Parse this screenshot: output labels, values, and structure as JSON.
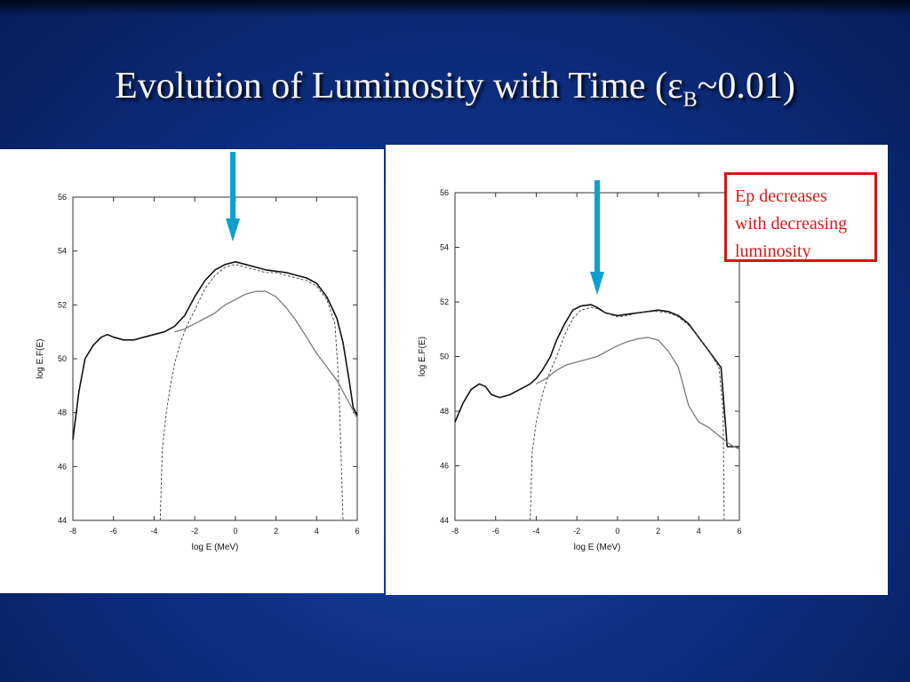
{
  "slide": {
    "title_main": "Evolution of Luminosity with Time (ε",
    "title_sub": "B",
    "title_tail": "~0.01)"
  },
  "callout": {
    "lines": [
      "Ep decreases",
      "with decreasing",
      "luminosity"
    ],
    "border_color": "#e01010",
    "text_color": "#d81a1a"
  },
  "colors": {
    "arrow": "#0e9fd0",
    "total": "#111111",
    "component": "#7a7a7a",
    "dashed": "#444444"
  },
  "chart_data": [
    {
      "type": "line",
      "xlabel": "log E (MeV)",
      "ylabel": "log E.F(E)",
      "xlim": [
        -8,
        6
      ],
      "ylim": [
        44,
        56
      ],
      "xticks": [
        -8,
        -6,
        -4,
        -2,
        0,
        2,
        4,
        6
      ],
      "yticks": [
        44,
        46,
        48,
        50,
        52,
        54,
        56
      ],
      "arrow_at_x": 0,
      "series": [
        {
          "style": "solid-dark",
          "x": [
            -8,
            -7.7,
            -7.4,
            -7,
            -6.6,
            -6.3,
            -6,
            -5.5,
            -5,
            -4.5,
            -4,
            -3.5,
            -3,
            -2.5,
            -2,
            -1.5,
            -1,
            -0.5,
            0,
            0.5,
            1,
            1.5,
            2,
            2.5,
            3,
            3.5,
            4,
            4.5,
            5,
            5.3,
            5.6,
            5.8,
            6
          ],
          "y": [
            47,
            48.8,
            50,
            50.5,
            50.8,
            50.9,
            50.8,
            50.7,
            50.7,
            50.8,
            50.9,
            51,
            51.2,
            51.6,
            52.3,
            52.9,
            53.3,
            53.5,
            53.6,
            53.5,
            53.4,
            53.3,
            53.25,
            53.2,
            53.1,
            53,
            52.8,
            52.3,
            51.5,
            50.6,
            49.2,
            48.2,
            47.9
          ]
        },
        {
          "style": "dashed",
          "x": [
            -3.7,
            -3.6,
            -3.4,
            -3.2,
            -3,
            -2.7,
            -2.4,
            -2,
            -1.5,
            -1,
            -0.5,
            0,
            0.5,
            1,
            1.5,
            2,
            2.5,
            3,
            3.5,
            4,
            4.5,
            4.9,
            5.1,
            5.3
          ],
          "y": [
            44,
            46.6,
            48,
            49,
            49.8,
            50.6,
            51.2,
            51.8,
            52.6,
            53.1,
            53.4,
            53.5,
            53.4,
            53.3,
            53.2,
            53.2,
            53.1,
            53,
            52.9,
            52.7,
            52.2,
            51.3,
            49,
            44
          ]
        },
        {
          "style": "solid-grey",
          "x": [
            -3,
            -2.5,
            -2,
            -1.5,
            -1,
            -0.5,
            0,
            0.5,
            1,
            1.5,
            2,
            2.5,
            3,
            3.5,
            4,
            4.5,
            5,
            5.5,
            6
          ],
          "y": [
            51,
            51.1,
            51.3,
            51.5,
            51.7,
            52,
            52.2,
            52.4,
            52.5,
            52.5,
            52.3,
            51.9,
            51.4,
            50.8,
            50.2,
            49.7,
            49.2,
            48.5,
            47.8
          ]
        }
      ]
    },
    {
      "type": "line",
      "xlabel": "log E (MeV)",
      "ylabel": "log E.F(E)",
      "xlim": [
        -8,
        6
      ],
      "ylim": [
        44,
        56
      ],
      "xticks": [
        -8,
        -6,
        -4,
        -2,
        0,
        2,
        4,
        6
      ],
      "yticks": [
        44,
        46,
        48,
        50,
        52,
        54,
        56
      ],
      "arrow_at_x": -1,
      "series": [
        {
          "style": "solid-dark",
          "x": [
            -8,
            -7.6,
            -7.2,
            -6.8,
            -6.5,
            -6.2,
            -5.8,
            -5.3,
            -4.8,
            -4.3,
            -4,
            -3.7,
            -3.3,
            -3,
            -2.6,
            -2.2,
            -1.8,
            -1.3,
            -1,
            -0.6,
            0,
            0.5,
            1,
            1.5,
            2,
            2.5,
            3,
            3.5,
            4,
            4.5,
            5.1,
            5.4,
            6
          ],
          "y": [
            47.6,
            48.3,
            48.8,
            49,
            48.9,
            48.6,
            48.5,
            48.6,
            48.8,
            49,
            49.2,
            49.5,
            50,
            50.6,
            51.2,
            51.7,
            51.85,
            51.9,
            51.8,
            51.6,
            51.5,
            51.55,
            51.6,
            51.65,
            51.7,
            51.65,
            51.5,
            51.2,
            50.7,
            50.2,
            49.6,
            46.7,
            46.7
          ]
        },
        {
          "style": "dashed",
          "x": [
            -4.3,
            -4.2,
            -4,
            -3.7,
            -3.4,
            -3,
            -2.6,
            -2.2,
            -1.8,
            -1.3,
            -1,
            -0.6,
            0,
            0.5,
            1,
            1.5,
            2,
            2.5,
            3,
            3.5,
            4,
            4.5,
            5,
            5.2,
            5.25
          ],
          "y": [
            44,
            46.5,
            47.6,
            48.6,
            49.3,
            50,
            50.8,
            51.4,
            51.7,
            51.8,
            51.75,
            51.6,
            51.45,
            51.5,
            51.6,
            51.65,
            51.65,
            51.6,
            51.45,
            51.15,
            50.7,
            50.2,
            49.6,
            48,
            44
          ]
        },
        {
          "style": "solid-grey",
          "x": [
            -4,
            -3.5,
            -3,
            -2.5,
            -2,
            -1.5,
            -1,
            -0.5,
            0,
            0.5,
            1,
            1.5,
            2,
            2.5,
            3,
            3.5,
            4,
            4.5,
            5,
            5.5,
            6
          ],
          "y": [
            49,
            49.2,
            49.5,
            49.7,
            49.8,
            49.9,
            50,
            50.2,
            50.4,
            50.55,
            50.65,
            50.7,
            50.6,
            50.2,
            49.6,
            48.2,
            47.6,
            47.4,
            47.1,
            46.8,
            46.6
          ]
        }
      ]
    }
  ]
}
